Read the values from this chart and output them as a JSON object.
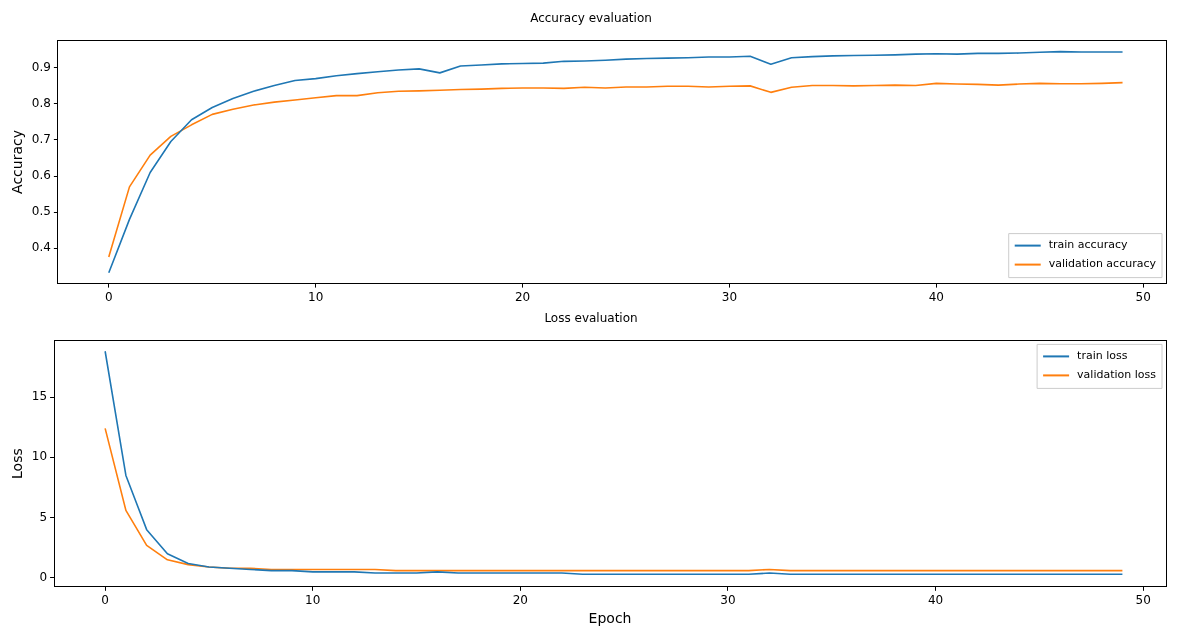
{
  "chart_data": [
    {
      "type": "line",
      "title": "Accuracy evaluation",
      "ylabel": "Accuracy",
      "x": [
        0,
        1,
        2,
        3,
        4,
        5,
        6,
        7,
        8,
        9,
        10,
        11,
        12,
        13,
        14,
        15,
        16,
        17,
        18,
        19,
        20,
        21,
        22,
        23,
        24,
        25,
        26,
        27,
        28,
        29,
        30,
        31,
        32,
        33,
        34,
        35,
        36,
        37,
        38,
        39,
        40,
        41,
        42,
        43,
        44,
        45,
        46,
        47,
        48,
        49
      ],
      "xlim": [
        -2.46,
        51.1
      ],
      "xticks": [
        0,
        10,
        20,
        30,
        40,
        50
      ],
      "ylim": [
        0.302,
        0.976
      ],
      "yticks": [
        0.4,
        0.5,
        0.6,
        0.7,
        0.8,
        0.9
      ],
      "legend": "bottom right",
      "grid": false,
      "series": [
        {
          "name": "train accuracy",
          "color": "#1f77b4",
          "values": [
            0.332,
            0.48,
            0.61,
            0.696,
            0.756,
            0.79,
            0.815,
            0.835,
            0.851,
            0.865,
            0.87,
            0.878,
            0.884,
            0.889,
            0.894,
            0.897,
            0.886,
            0.905,
            0.908,
            0.911,
            0.912,
            0.913,
            0.918,
            0.919,
            0.921,
            0.924,
            0.926,
            0.927,
            0.928,
            0.93,
            0.93,
            0.932,
            0.91,
            0.928,
            0.931,
            0.933,
            0.934,
            0.935,
            0.936,
            0.938,
            0.939,
            0.938,
            0.94,
            0.94,
            0.941,
            0.943,
            0.945,
            0.944,
            0.944,
            0.944
          ]
        },
        {
          "name": "validation accuracy",
          "color": "#ff7f0e",
          "values": [
            0.376,
            0.57,
            0.658,
            0.71,
            0.742,
            0.771,
            0.785,
            0.797,
            0.805,
            0.811,
            0.817,
            0.823,
            0.823,
            0.831,
            0.835,
            0.836,
            0.838,
            0.84,
            0.841,
            0.843,
            0.844,
            0.844,
            0.843,
            0.846,
            0.844,
            0.847,
            0.847,
            0.849,
            0.849,
            0.847,
            0.849,
            0.85,
            0.832,
            0.846,
            0.851,
            0.851,
            0.85,
            0.851,
            0.852,
            0.851,
            0.857,
            0.855,
            0.854,
            0.852,
            0.855,
            0.857,
            0.856,
            0.856,
            0.857,
            0.859
          ]
        }
      ]
    },
    {
      "type": "line",
      "title": "Loss evaluation",
      "xlabel": "Epoch",
      "ylabel": "Loss",
      "x": [
        0,
        1,
        2,
        3,
        4,
        5,
        6,
        7,
        8,
        9,
        10,
        11,
        12,
        13,
        14,
        15,
        16,
        17,
        18,
        19,
        20,
        21,
        22,
        23,
        24,
        25,
        26,
        27,
        28,
        29,
        30,
        31,
        32,
        33,
        34,
        35,
        36,
        37,
        38,
        39,
        40,
        41,
        42,
        43,
        44,
        45,
        46,
        47,
        48,
        49
      ],
      "xlim": [
        -2.46,
        51.1
      ],
      "xticks": [
        0,
        10,
        20,
        30,
        40,
        50
      ],
      "ylim": [
        -0.74,
        19.7
      ],
      "yticks": [
        0,
        5,
        10,
        15
      ],
      "legend": "top right",
      "grid": false,
      "series": [
        {
          "name": "train loss",
          "color": "#1f77b4",
          "values": [
            18.8,
            8.5,
            4.0,
            2.0,
            1.2,
            0.9,
            0.8,
            0.7,
            0.6,
            0.6,
            0.5,
            0.5,
            0.5,
            0.4,
            0.4,
            0.4,
            0.5,
            0.4,
            0.4,
            0.4,
            0.4,
            0.4,
            0.4,
            0.3,
            0.3,
            0.3,
            0.3,
            0.3,
            0.3,
            0.3,
            0.3,
            0.3,
            0.4,
            0.3,
            0.3,
            0.3,
            0.3,
            0.3,
            0.3,
            0.3,
            0.3,
            0.3,
            0.3,
            0.3,
            0.3,
            0.3,
            0.3,
            0.3,
            0.3,
            0.3
          ]
        },
        {
          "name": "validation loss",
          "color": "#ff7f0e",
          "values": [
            12.4,
            5.6,
            2.7,
            1.5,
            1.1,
            0.9,
            0.8,
            0.8,
            0.7,
            0.7,
            0.7,
            0.7,
            0.7,
            0.7,
            0.6,
            0.6,
            0.6,
            0.6,
            0.6,
            0.6,
            0.6,
            0.6,
            0.6,
            0.6,
            0.6,
            0.6,
            0.6,
            0.6,
            0.6,
            0.6,
            0.6,
            0.6,
            0.7,
            0.6,
            0.6,
            0.6,
            0.6,
            0.6,
            0.6,
            0.6,
            0.6,
            0.6,
            0.6,
            0.6,
            0.6,
            0.6,
            0.6,
            0.6,
            0.6,
            0.6
          ]
        }
      ]
    }
  ]
}
